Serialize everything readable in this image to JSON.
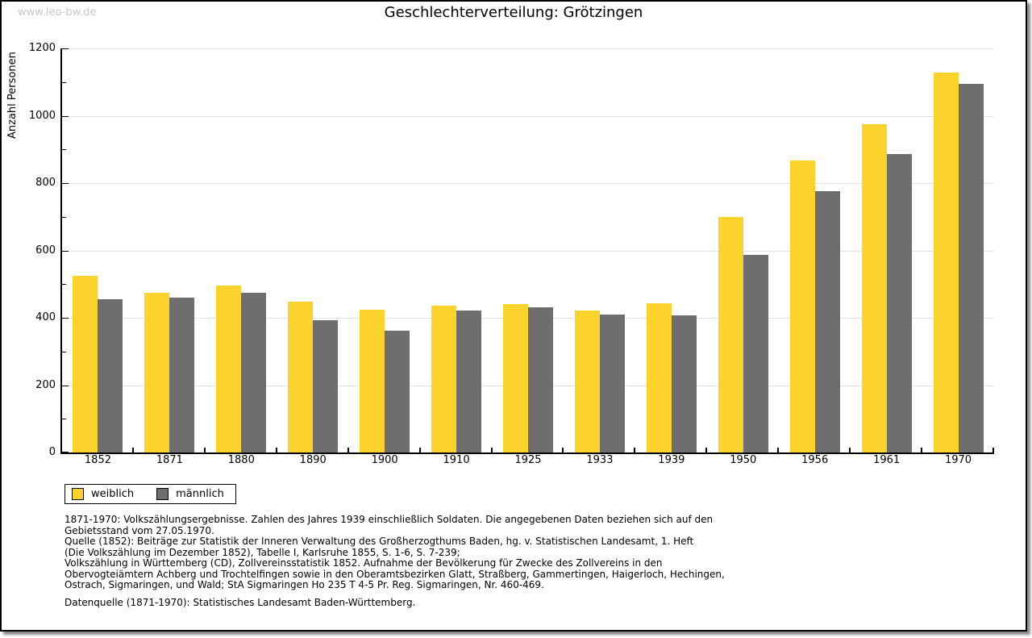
{
  "page": {
    "watermark": "www.leo-bw.de",
    "title": "Geschlechterverteilung: Grötzingen"
  },
  "chart_data": {
    "type": "bar",
    "title": "Geschlechterverteilung: Grötzingen",
    "xlabel": "",
    "ylabel": "Anzahl Personen",
    "ylim": [
      0,
      1200
    ],
    "ytick_step": 200,
    "minor_tick_step": 100,
    "grid": "horizontal",
    "legend_position": "bottom-left",
    "categories": [
      "1852",
      "1871",
      "1880",
      "1890",
      "1900",
      "1910",
      "1925",
      "1933",
      "1939",
      "1950",
      "1956",
      "1961",
      "1970"
    ],
    "series": [
      {
        "name": "weiblich",
        "color": "#fcd32d",
        "values": [
          524,
          475,
          497,
          449,
          425,
          437,
          440,
          422,
          444,
          699,
          867,
          975,
          1128
        ]
      },
      {
        "name": "männlich",
        "color": "#6e6e6e",
        "values": [
          455,
          461,
          474,
          392,
          361,
          422,
          431,
          410,
          407,
          588,
          776,
          886,
          1094
        ]
      }
    ]
  },
  "footnotes": {
    "lines": [
      "1871-1970: Volkszählungsergebnisse. Zahlen des Jahres 1939 einschließlich Soldaten. Die angegebenen Daten beziehen sich auf den",
      "Gebietsstand vom 27.05.1970.",
      "Quelle (1852): Beiträge zur Statistik der Inneren Verwaltung des Großherzogthums Baden, hg. v. Statistischen Landesamt, 1. Heft",
      "(Die Volkszählung im Dezember 1852), Tabelle I, Karlsruhe 1855, S. 1-6, S. 7-239;",
      "Volkszählung in Württemberg (CD), Zollvereinsstatistik 1852. Aufnahme der Bevölkerung für Zwecke des Zollvereins in den",
      "Obervogteiämtern Achberg und Trochtelfingen sowie in den Oberamtsbezirken Glatt, Straßberg, Gammertingen, Haigerloch, Hechingen,",
      "Ostrach, Sigmaringen, und Wald; StA Sigmaringen Ho 235 T 4-5 Pr. Reg. Sigmaringen, Nr. 460-469."
    ],
    "datasource": "Datenquelle (1871-1970): Statistisches Landesamt Baden-Württemberg."
  },
  "colors": {
    "weiblich": "#fcd32d",
    "männlich": "#6e6e6e",
    "gridline": "#e0e0e0",
    "axis": "#000000",
    "watermark": "#c8c8c8"
  }
}
